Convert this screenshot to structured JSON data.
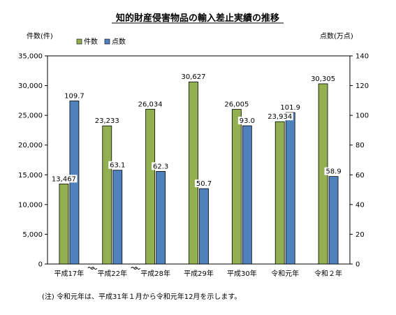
{
  "chart_data": {
    "type": "bar",
    "title": "知的財産侵害物品の輸入差止実績の推移",
    "ylabel_left": "件数(件)",
    "ylabel_right": "点数(万点)",
    "ylim_left": [
      0,
      35000
    ],
    "ylim_right": [
      0,
      140
    ],
    "yticks_left": [
      "0",
      "5,000",
      "10,000",
      "15,000",
      "20,000",
      "25,000",
      "30,000",
      "35,000"
    ],
    "yticks_right": [
      "0",
      "20",
      "40",
      "60",
      "80",
      "100",
      "120",
      "140"
    ],
    "categories": [
      "平成17年",
      "平成22年",
      "平成28年",
      "平成29年",
      "平成30年",
      "令和元年",
      "令和２年"
    ],
    "series": [
      {
        "name": "件数",
        "axis": "left",
        "color": "#92b050",
        "values": [
          13467,
          23233,
          26034,
          30627,
          26005,
          23934,
          30305
        ],
        "labels": [
          "13,467",
          "23,233",
          "26,034",
          "30,627",
          "26,005",
          "23,934",
          "30,305"
        ]
      },
      {
        "name": "点数",
        "axis": "right",
        "color": "#4f81bd",
        "values": [
          109.7,
          63.1,
          62.3,
          50.7,
          93.0,
          101.9,
          58.9
        ],
        "labels": [
          "109.7",
          "63.1",
          "62.3",
          "50.7",
          "93.0",
          "101.9",
          "58.9"
        ]
      }
    ],
    "axis_breaks_after": [
      0,
      1
    ],
    "grid": false,
    "legend_position": "top-left"
  },
  "note": "(注) 令和元年は、平成31年１月から令和元年12月を示します。"
}
